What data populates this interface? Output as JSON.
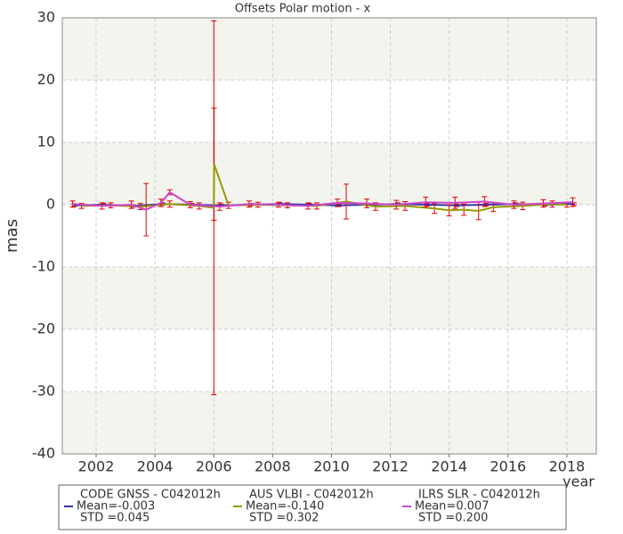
{
  "chart_data": {
    "type": "line",
    "title": "Offsets Polar motion - x",
    "x_label": "year",
    "y_label": "mas",
    "xlim": [
      2000.85,
      2019.0
    ],
    "xticks": [
      2002,
      2004,
      2006,
      2008,
      2010,
      2012,
      2014,
      2016,
      2018
    ],
    "ylim": [
      -40,
      30
    ],
    "yticks": [
      -40,
      -30,
      -20,
      -10,
      0,
      10,
      20,
      30
    ],
    "grid": true,
    "alternate_bands": true,
    "errorbar_color": "#dd0000",
    "series": [
      {
        "name": "CODE GNSS - C042012h",
        "stats": [
          "Mean=-0.003",
          "STD =0.045"
        ],
        "color": "#3333aa",
        "x": [
          2001.25,
          2002.25,
          2003.25,
          2004.25,
          2005.25,
          2006.25,
          2007.25,
          2008.25,
          2009.25,
          2010.25,
          2011.25,
          2012.25,
          2013.25,
          2014.25,
          2015.25,
          2016.25,
          2017.25,
          2018.25
        ],
        "values": [
          -0.1,
          0.0,
          -0.2,
          0.1,
          0.0,
          -0.1,
          0.0,
          0.1,
          0.0,
          -0.1,
          0.0,
          0.1,
          0.0,
          -0.1,
          0.0,
          0.1,
          0.0,
          0.1
        ],
        "errors": [
          0.2,
          0.2,
          0.2,
          0.2,
          0.2,
          0.2,
          0.2,
          0.2,
          0.2,
          0.2,
          0.2,
          0.2,
          0.2,
          0.2,
          0.2,
          0.2,
          0.2,
          0.2
        ]
      },
      {
        "name": "AUS VLBI - C042012h",
        "stats": [
          "Mean=-0.140",
          "STD =0.302"
        ],
        "color": "#999900",
        "x": [
          2001.5,
          2002.5,
          2003.5,
          2004.5,
          2005.5,
          2006.0,
          2006.01,
          2006.5,
          2007.5,
          2008.5,
          2009.5,
          2010.5,
          2011.5,
          2012.5,
          2013.5,
          2014.0,
          2014.5,
          2015.0,
          2015.5,
          2016.5,
          2017.5,
          2018.0
        ],
        "values": [
          -0.2,
          -0.1,
          -0.3,
          0.1,
          -0.2,
          -0.5,
          6.5,
          -0.1,
          0.0,
          -0.1,
          -0.2,
          0.5,
          -0.3,
          -0.2,
          -0.6,
          -0.9,
          -0.8,
          -1.0,
          -0.4,
          -0.2,
          0.1,
          0.0
        ],
        "errors": [
          0.4,
          0.4,
          0.5,
          0.5,
          0.5,
          30,
          9,
          0.5,
          0.4,
          0.4,
          0.5,
          2.8,
          0.6,
          0.7,
          0.8,
          0.9,
          0.9,
          1.4,
          0.7,
          0.6,
          0.5,
          0.4
        ]
      },
      {
        "name": "ILRS SLR - C042012h",
        "stats": [
          "Mean=0.007",
          "STD =0.200"
        ],
        "color": "#cc44cc",
        "x": [
          2001.2,
          2002.2,
          2003.2,
          2003.7,
          2004.2,
          2004.5,
          2005.2,
          2006.2,
          2007.2,
          2008.2,
          2009.2,
          2010.2,
          2011.2,
          2012.2,
          2013.2,
          2014.2,
          2015.2,
          2016.2,
          2017.2,
          2018.2
        ],
        "values": [
          0.1,
          -0.2,
          0.0,
          -0.8,
          0.3,
          2.0,
          0.0,
          -0.3,
          0.1,
          0.0,
          -0.2,
          0.3,
          0.2,
          0.0,
          0.4,
          0.3,
          0.5,
          0.0,
          0.2,
          0.4
        ],
        "errors": [
          0.5,
          0.5,
          0.6,
          4.2,
          0.6,
          0.4,
          0.5,
          0.6,
          0.5,
          0.4,
          0.5,
          0.6,
          0.7,
          0.7,
          0.8,
          0.9,
          0.8,
          0.6,
          0.6,
          0.7
        ]
      }
    ]
  }
}
